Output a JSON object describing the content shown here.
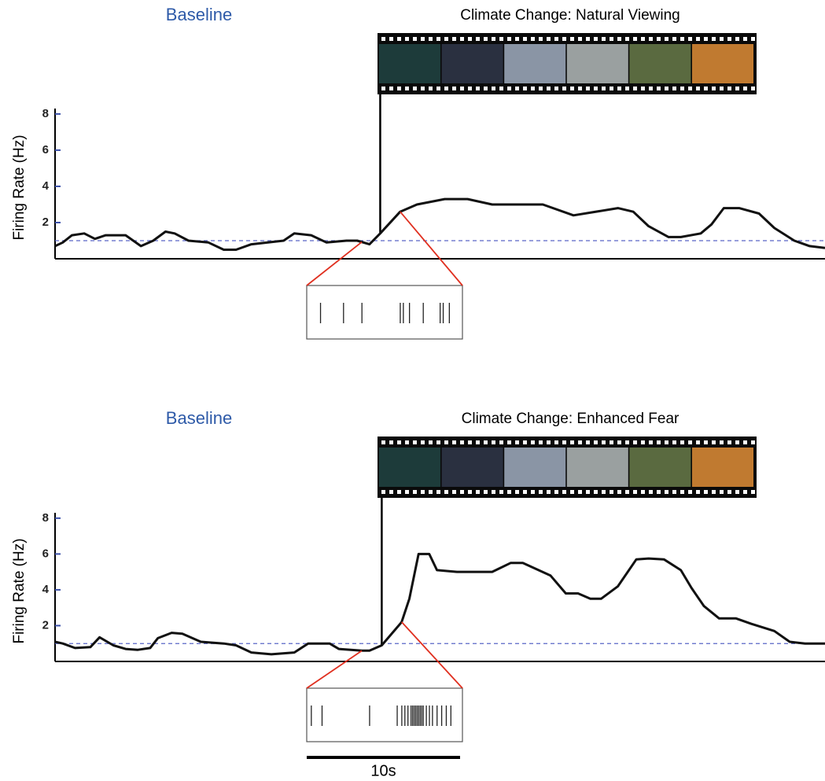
{
  "chart_data": [
    {
      "type": "line",
      "title": "Climate Change: Natural Viewing",
      "baseline_label": "Baseline",
      "ylabel": "Firing Rate (Hz)",
      "x": [
        0,
        0.5,
        1.1,
        1.9,
        2.6,
        3.3,
        4.6,
        5.6,
        6.4,
        7.2,
        7.8,
        8.7,
        10.0,
        11.0,
        11.8,
        12.8,
        14.9,
        15.6,
        16.7,
        17.7,
        19.0,
        19.7,
        20.5,
        21.2,
        22.5,
        23.6,
        25.4,
        26.9,
        28.5,
        31.8,
        33.8,
        36.7,
        37.7,
        38.7,
        40.0,
        40.8,
        42.1,
        42.8,
        43.6,
        44.6,
        45.9,
        46.9,
        48.2,
        49.2,
        50.2
      ],
      "values": [
        0.7,
        0.9,
        1.3,
        1.4,
        1.1,
        1.3,
        1.3,
        0.7,
        1.0,
        1.5,
        1.4,
        1.0,
        0.9,
        0.5,
        0.5,
        0.8,
        1.0,
        1.4,
        1.3,
        0.9,
        1.0,
        1.0,
        0.8,
        1.4,
        2.6,
        3.0,
        3.3,
        3.3,
        3.0,
        3.0,
        2.4,
        2.8,
        2.6,
        1.8,
        1.2,
        1.2,
        1.4,
        1.9,
        2.8,
        2.8,
        2.5,
        1.7,
        1.0,
        0.7,
        0.6
      ],
      "color": "#111111",
      "xlim": [
        0,
        50.2
      ],
      "ylim": [
        0,
        8.3
      ],
      "yticks": [
        2,
        4,
        6,
        8
      ],
      "baseline_rate": 1,
      "stimulus_onset": 21.2,
      "zoom_window": [
        20.0,
        22.5
      ],
      "inset_xlim": [
        0,
        10
      ],
      "spikes": [
        0.9,
        2.4,
        3.6,
        6.1,
        6.3,
        6.7,
        7.6,
        8.7,
        8.9,
        9.3
      ]
    },
    {
      "type": "line",
      "title": "Climate Change: Enhanced Fear",
      "baseline_label": "Baseline",
      "ylabel": "Firing Rate (Hz)",
      "x": [
        0,
        0.5,
        1.3,
        2.3,
        2.9,
        3.8,
        4.6,
        5.4,
        6.2,
        6.7,
        7.6,
        8.3,
        9.5,
        11.0,
        11.8,
        12.8,
        14.1,
        15.6,
        16.5,
        17.9,
        18.5,
        20.0,
        20.5,
        21.3,
        22.6,
        23.1,
        23.7,
        24.4,
        24.9,
        26.2,
        27.2,
        28.5,
        29.7,
        30.5,
        32.3,
        33.3,
        34.1,
        34.9,
        35.6,
        36.7,
        37.9,
        38.7,
        39.7,
        40.8,
        41.5,
        42.3,
        43.3,
        44.4,
        45.4,
        46.9,
        47.9,
        48.9,
        50.2
      ],
      "values": [
        1.1,
        1.0,
        0.75,
        0.8,
        1.35,
        0.9,
        0.7,
        0.65,
        0.75,
        1.3,
        1.6,
        1.55,
        1.1,
        1.0,
        0.9,
        0.5,
        0.4,
        0.5,
        1.0,
        1.0,
        0.7,
        0.6,
        0.6,
        0.9,
        2.2,
        3.5,
        6.0,
        6.0,
        5.1,
        5.0,
        5.0,
        5.0,
        5.5,
        5.5,
        4.8,
        3.8,
        3.8,
        3.5,
        3.5,
        4.2,
        5.7,
        5.75,
        5.7,
        5.1,
        4.1,
        3.1,
        2.4,
        2.4,
        2.1,
        1.7,
        1.1,
        1.0,
        1.0
      ],
      "color": "#111111",
      "xlim": [
        0,
        50.2
      ],
      "ylim": [
        0,
        8.3
      ],
      "yticks": [
        2,
        4,
        6,
        8
      ],
      "baseline_rate": 1,
      "stimulus_onset": 21.3,
      "zoom_window": [
        20.0,
        22.6
      ],
      "inset_xlim": [
        0,
        10
      ],
      "spikes": [
        0.3,
        1.0,
        4.1,
        5.9,
        6.2,
        6.4,
        6.6,
        6.8,
        6.9,
        7.0,
        7.1,
        7.2,
        7.3,
        7.4,
        7.5,
        7.6,
        7.8,
        8.0,
        8.2,
        8.5,
        8.8,
        9.1,
        9.4
      ],
      "scale_bar": {
        "value": 10,
        "label": "10s"
      }
    }
  ]
}
